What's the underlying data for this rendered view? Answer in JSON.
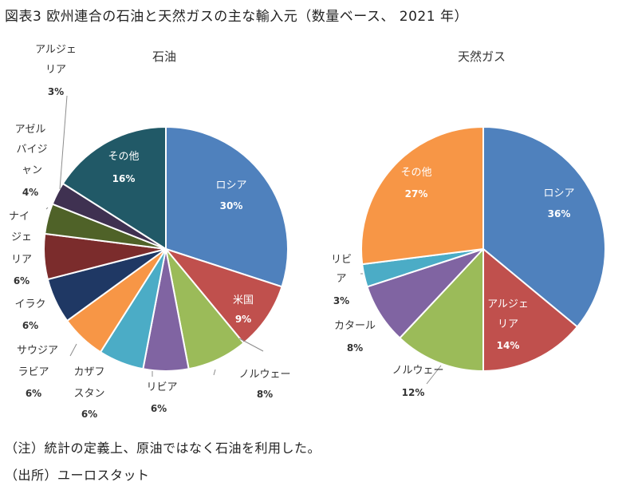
{
  "title": "図表3 欧州連合の石油と天然ガスの主な輸入元（数量ベース、 2021 年）",
  "notes": {
    "note": "（注）統計の定義上、原油ではなく石油を利用した。",
    "source": "（出所）ユーロスタット"
  },
  "chart_data": [
    {
      "type": "pie",
      "title": "石油",
      "slices": [
        {
          "label": "ロシア",
          "value": 30,
          "color": "#4F81BD",
          "label_color": "#ffffff"
        },
        {
          "label": "米国",
          "value": 9,
          "color": "#C0504D",
          "label_color": "#ffffff"
        },
        {
          "label": "ノルウェー",
          "value": 8,
          "color": "#9BBB59",
          "label_color": "#333333"
        },
        {
          "label": "リビア",
          "value": 6,
          "color": "#8064A2",
          "label_color": "#333333"
        },
        {
          "label": "カザフスタン",
          "value": 6,
          "color": "#4BACC6",
          "label_color": "#333333"
        },
        {
          "label": "サウジアラビア",
          "value": 6,
          "color": "#F79646",
          "label_color": "#333333"
        },
        {
          "label": "イラク",
          "value": 6,
          "color": "#1F3864",
          "label_color": "#333333"
        },
        {
          "label": "ナイジェリア",
          "value": 6,
          "color": "#7B2C2C",
          "label_color": "#333333"
        },
        {
          "label": "アゼルバイジャン",
          "value": 4,
          "color": "#4F6228",
          "label_color": "#333333"
        },
        {
          "label": "アルジェリア",
          "value": 3,
          "color": "#3F3151",
          "label_color": "#333333"
        },
        {
          "label": "その他",
          "value": 16,
          "color": "#215967",
          "label_color": "#ffffff"
        }
      ]
    },
    {
      "type": "pie",
      "title": "天然ガス",
      "slices": [
        {
          "label": "ロシア",
          "value": 36,
          "color": "#4F81BD",
          "label_color": "#ffffff"
        },
        {
          "label": "アルジェリア",
          "value": 14,
          "color": "#C0504D",
          "label_color": "#ffffff"
        },
        {
          "label": "ノルウェー",
          "value": 12,
          "color": "#9BBB59",
          "label_color": "#333333"
        },
        {
          "label": "カタール",
          "value": 8,
          "color": "#8064A2",
          "label_color": "#333333"
        },
        {
          "label": "リビア",
          "value": 3,
          "color": "#4BACC6",
          "label_color": "#333333"
        },
        {
          "label": "その他",
          "value": 27,
          "color": "#F79646",
          "label_color": "#ffffff"
        }
      ]
    }
  ]
}
